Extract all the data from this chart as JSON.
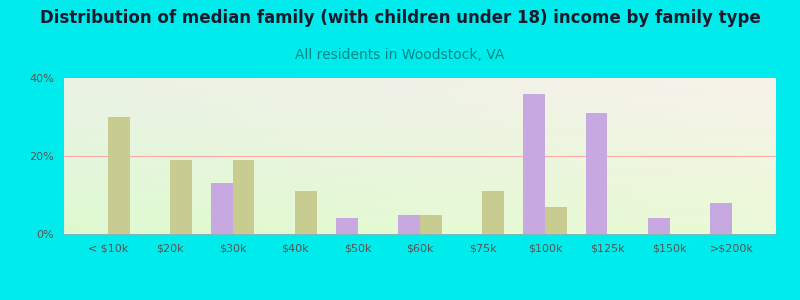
{
  "title": "Distribution of median family (with children under 18) income by family type",
  "subtitle": "All residents in Woodstock, VA",
  "categories": [
    "< $10k",
    "$20k",
    "$30k",
    "$40k",
    "$50k",
    "$60k",
    "$75k",
    "$100k",
    "$125k",
    "$150k",
    ">$200k"
  ],
  "married_couple": [
    0,
    0,
    13,
    0,
    4,
    5,
    0,
    36,
    31,
    4,
    8
  ],
  "female_no_husband": [
    30,
    19,
    19,
    11,
    0,
    5,
    11,
    7,
    0,
    0,
    0
  ],
  "married_color": "#c8a8e0",
  "female_color": "#c8cc90",
  "background_color": "#00ecec",
  "ylim": [
    0,
    40
  ],
  "yticks": [
    0,
    20,
    40
  ],
  "ytick_labels": [
    "0%",
    "20%",
    "40%"
  ],
  "title_fontsize": 12,
  "subtitle_fontsize": 10,
  "title_color": "#1a1a2e",
  "subtitle_color": "#008888",
  "bar_width": 0.35,
  "grid_color": "#ffaaaa",
  "tick_color": "#555555"
}
